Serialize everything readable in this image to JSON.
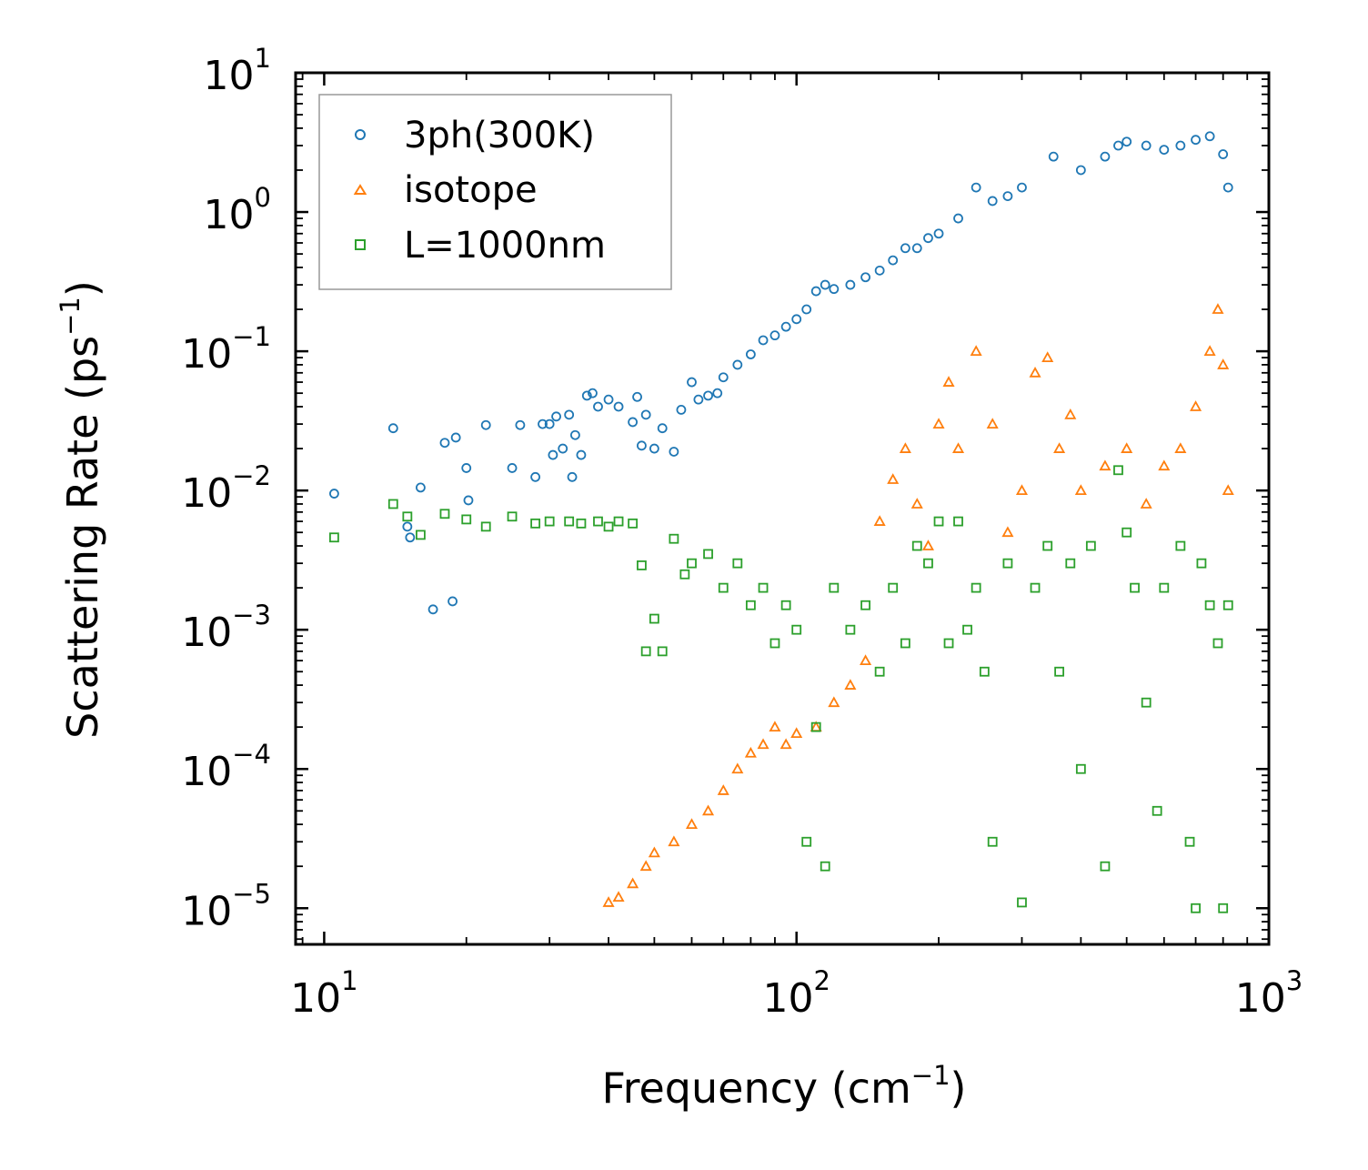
{
  "chart_data": {
    "type": "scatter",
    "xscale": "log",
    "yscale": "log",
    "xlim": [
      8.7,
      1000
    ],
    "ylim": [
      5.5e-06,
      10
    ],
    "xlabel": "Frequency (cm",
    "xlabel_exp": "−1",
    "xlabel_close": ")",
    "ylabel": "Scattering Rate (ps",
    "ylabel_exp": "−1",
    "ylabel_close": ")",
    "x_ticks": [
      {
        "value": 10,
        "base": "10",
        "exp": "1"
      },
      {
        "value": 100,
        "base": "10",
        "exp": "2"
      },
      {
        "value": 1000,
        "base": "10",
        "exp": "3"
      }
    ],
    "y_ticks": [
      {
        "value": 10,
        "base": "10",
        "exp": "1"
      },
      {
        "value": 1,
        "base": "10",
        "exp": "0"
      },
      {
        "value": 0.1,
        "base": "10",
        "exp": "−1"
      },
      {
        "value": 0.01,
        "base": "10",
        "exp": "−2"
      },
      {
        "value": 0.001,
        "base": "10",
        "exp": "−3"
      },
      {
        "value": 0.0001,
        "base": "10",
        "exp": "−4"
      },
      {
        "value": 1e-05,
        "base": "10",
        "exp": "−5"
      }
    ],
    "legend_position": "upper-left",
    "series": [
      {
        "name": "3ph(300K)",
        "marker": "circle",
        "color": "#1f77b4",
        "points": [
          [
            10.5,
            0.0095
          ],
          [
            14,
            0.028
          ],
          [
            15,
            0.0055
          ],
          [
            15.2,
            0.0046
          ],
          [
            16,
            0.0105
          ],
          [
            17,
            0.0014
          ],
          [
            18,
            0.022
          ],
          [
            18.7,
            0.0016
          ],
          [
            19,
            0.024
          ],
          [
            20,
            0.0145
          ],
          [
            20.2,
            0.0085
          ],
          [
            22,
            0.0295
          ],
          [
            25,
            0.0145
          ],
          [
            26,
            0.0295
          ],
          [
            28,
            0.0125
          ],
          [
            29,
            0.03
          ],
          [
            30,
            0.03
          ],
          [
            30.5,
            0.018
          ],
          [
            31,
            0.034
          ],
          [
            32,
            0.02
          ],
          [
            33,
            0.035
          ],
          [
            33.5,
            0.0125
          ],
          [
            34,
            0.025
          ],
          [
            35,
            0.018
          ],
          [
            36,
            0.048
          ],
          [
            37,
            0.05
          ],
          [
            38,
            0.04
          ],
          [
            40,
            0.045
          ],
          [
            42,
            0.04
          ],
          [
            45,
            0.031
          ],
          [
            46,
            0.047
          ],
          [
            47,
            0.021
          ],
          [
            48,
            0.035
          ],
          [
            50,
            0.02
          ],
          [
            52,
            0.028
          ],
          [
            55,
            0.019
          ],
          [
            57,
            0.038
          ],
          [
            60,
            0.06
          ],
          [
            62,
            0.045
          ],
          [
            65,
            0.048
          ],
          [
            68,
            0.05
          ],
          [
            70,
            0.065
          ],
          [
            75,
            0.08
          ],
          [
            80,
            0.095
          ],
          [
            85,
            0.12
          ],
          [
            90,
            0.13
          ],
          [
            95,
            0.15
          ],
          [
            100,
            0.17
          ],
          [
            105,
            0.2
          ],
          [
            110,
            0.27
          ],
          [
            115,
            0.3
          ],
          [
            120,
            0.28
          ],
          [
            130,
            0.3
          ],
          [
            140,
            0.34
          ],
          [
            150,
            0.38
          ],
          [
            160,
            0.45
          ],
          [
            170,
            0.55
          ],
          [
            180,
            0.55
          ],
          [
            190,
            0.65
          ],
          [
            200,
            0.7
          ],
          [
            220,
            0.9
          ],
          [
            240,
            1.5
          ],
          [
            260,
            1.2
          ],
          [
            280,
            1.3
          ],
          [
            300,
            1.5
          ],
          [
            350,
            2.5
          ],
          [
            400,
            2.0
          ],
          [
            450,
            2.5
          ],
          [
            480,
            3.0
          ],
          [
            500,
            3.2
          ],
          [
            550,
            3.0
          ],
          [
            600,
            2.8
          ],
          [
            650,
            3.0
          ],
          [
            700,
            3.3
          ],
          [
            750,
            3.5
          ],
          [
            800,
            2.6
          ],
          [
            820,
            1.5
          ]
        ]
      },
      {
        "name": "isotope",
        "marker": "triangle",
        "color": "#ff7f0e",
        "points": [
          [
            40,
            1.1e-05
          ],
          [
            42,
            1.2e-05
          ],
          [
            45,
            1.5e-05
          ],
          [
            48,
            2e-05
          ],
          [
            50,
            2.5e-05
          ],
          [
            55,
            3e-05
          ],
          [
            60,
            4e-05
          ],
          [
            65,
            5e-05
          ],
          [
            70,
            7e-05
          ],
          [
            75,
            0.0001
          ],
          [
            80,
            0.00013
          ],
          [
            85,
            0.00015
          ],
          [
            90,
            0.0002
          ],
          [
            95,
            0.00015
          ],
          [
            100,
            0.00018
          ],
          [
            110,
            0.0002
          ],
          [
            120,
            0.0003
          ],
          [
            130,
            0.0004
          ],
          [
            140,
            0.0006
          ],
          [
            150,
            0.006
          ],
          [
            160,
            0.012
          ],
          [
            170,
            0.02
          ],
          [
            180,
            0.008
          ],
          [
            190,
            0.004
          ],
          [
            200,
            0.03
          ],
          [
            210,
            0.06
          ],
          [
            220,
            0.02
          ],
          [
            240,
            0.1
          ],
          [
            260,
            0.03
          ],
          [
            280,
            0.005
          ],
          [
            300,
            0.01
          ],
          [
            320,
            0.07
          ],
          [
            340,
            0.09
          ],
          [
            360,
            0.02
          ],
          [
            380,
            0.035
          ],
          [
            400,
            0.01
          ],
          [
            450,
            0.015
          ],
          [
            500,
            0.02
          ],
          [
            550,
            0.008
          ],
          [
            600,
            0.015
          ],
          [
            650,
            0.02
          ],
          [
            700,
            0.04
          ],
          [
            750,
            0.1
          ],
          [
            780,
            0.2
          ],
          [
            800,
            0.08
          ],
          [
            820,
            0.01
          ]
        ]
      },
      {
        "name": "L=1000nm",
        "marker": "square",
        "color": "#2ca02c",
        "points": [
          [
            10.5,
            0.0046
          ],
          [
            14,
            0.008
          ],
          [
            15,
            0.0065
          ],
          [
            16,
            0.0048
          ],
          [
            18,
            0.0068
          ],
          [
            20,
            0.0062
          ],
          [
            22,
            0.0055
          ],
          [
            25,
            0.0065
          ],
          [
            28,
            0.0058
          ],
          [
            30,
            0.006
          ],
          [
            33,
            0.006
          ],
          [
            35,
            0.0058
          ],
          [
            38,
            0.006
          ],
          [
            40,
            0.0055
          ],
          [
            42,
            0.006
          ],
          [
            45,
            0.0058
          ],
          [
            47,
            0.0029
          ],
          [
            48,
            0.0007
          ],
          [
            50,
            0.0012
          ],
          [
            52,
            0.0007
          ],
          [
            55,
            0.0045
          ],
          [
            58,
            0.0025
          ],
          [
            60,
            0.003
          ],
          [
            65,
            0.0035
          ],
          [
            70,
            0.002
          ],
          [
            75,
            0.003
          ],
          [
            80,
            0.0015
          ],
          [
            85,
            0.002
          ],
          [
            90,
            0.0008
          ],
          [
            95,
            0.0015
          ],
          [
            100,
            0.001
          ],
          [
            105,
            3e-05
          ],
          [
            110,
            0.0002
          ],
          [
            115,
            2e-05
          ],
          [
            120,
            0.002
          ],
          [
            130,
            0.001
          ],
          [
            140,
            0.0015
          ],
          [
            150,
            0.0005
          ],
          [
            160,
            0.002
          ],
          [
            170,
            0.0008
          ],
          [
            180,
            0.004
          ],
          [
            190,
            0.003
          ],
          [
            200,
            0.006
          ],
          [
            210,
            0.0008
          ],
          [
            220,
            0.006
          ],
          [
            230,
            0.001
          ],
          [
            240,
            0.002
          ],
          [
            250,
            0.0005
          ],
          [
            260,
            3e-05
          ],
          [
            280,
            0.003
          ],
          [
            300,
            1.1e-05
          ],
          [
            320,
            0.002
          ],
          [
            340,
            0.004
          ],
          [
            360,
            0.0005
          ],
          [
            380,
            0.003
          ],
          [
            400,
            0.0001
          ],
          [
            420,
            0.004
          ],
          [
            450,
            2e-05
          ],
          [
            480,
            0.014
          ],
          [
            500,
            0.005
          ],
          [
            520,
            0.002
          ],
          [
            550,
            0.0003
          ],
          [
            580,
            5e-05
          ],
          [
            600,
            0.002
          ],
          [
            650,
            0.004
          ],
          [
            680,
            3e-05
          ],
          [
            700,
            1e-05
          ],
          [
            720,
            0.003
          ],
          [
            750,
            0.0015
          ],
          [
            780,
            0.0008
          ],
          [
            800,
            1e-05
          ],
          [
            820,
            0.0015
          ]
        ]
      }
    ]
  }
}
